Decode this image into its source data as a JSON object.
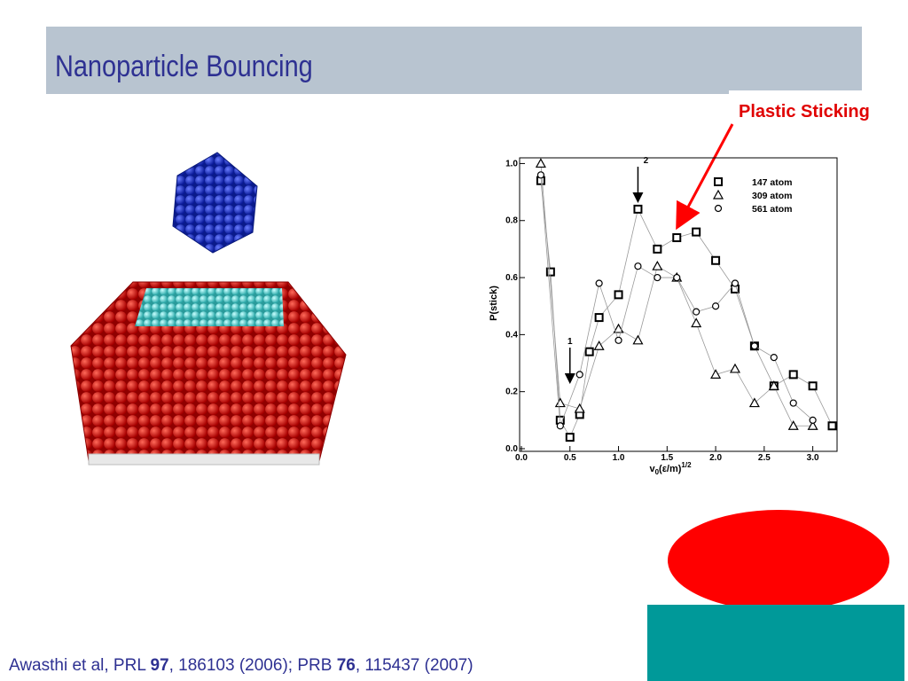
{
  "slide": {
    "title": "Nanoparticle Bouncing",
    "annotation": "Plastic Sticking",
    "citation": [
      "Awasthi et al, PRL ",
      "97",
      ", 186103 (2006); PRB ",
      "76",
      ", 115437 (2007)"
    ]
  },
  "chart_data": {
    "type": "scatter",
    "connected": true,
    "y_label": "P(stick)",
    "x_label": {
      "base": "v",
      "sub": "0",
      "main": "(ε/m)",
      "sup": "1/2"
    },
    "xlim": [
      0,
      3.25
    ],
    "ylim": [
      0,
      1.02
    ],
    "xticks": [
      {
        "value": 0,
        "label": "0.0"
      },
      {
        "value": 0.5,
        "label": "0.5"
      },
      {
        "value": 1,
        "label": "1.0"
      },
      {
        "value": 1.5,
        "label": "1.5"
      },
      {
        "value": 2,
        "label": "2.0"
      },
      {
        "value": 2.5,
        "label": "2.5"
      },
      {
        "value": 3,
        "label": "3.0"
      }
    ],
    "yticks": [
      {
        "value": 0,
        "label": "0.0"
      },
      {
        "value": 0.2,
        "label": "0.2"
      },
      {
        "value": 0.4,
        "label": "0.4"
      },
      {
        "value": 0.6,
        "label": "0.6"
      },
      {
        "value": 0.8,
        "label": "0.8"
      },
      {
        "value": 1,
        "label": "1.0"
      }
    ],
    "series": [
      {
        "name": "147 atom",
        "color": "#000000",
        "marker": "square",
        "x": [
          0.2,
          0.3,
          0.4,
          0.5,
          0.6,
          0.7,
          0.8,
          1.0,
          1.2,
          1.4,
          1.6,
          1.8,
          2.0,
          2.2,
          2.4,
          2.6,
          2.8,
          3.0,
          3.2
        ],
        "values": [
          0.94,
          0.62,
          0.1,
          0.04,
          0.12,
          0.34,
          0.46,
          0.54,
          0.84,
          0.7,
          0.74,
          0.76,
          0.66,
          0.56,
          0.36,
          0.22,
          0.26,
          0.22,
          0.08
        ]
      },
      {
        "name": "309 atom",
        "color": "#000000",
        "marker": "triangle",
        "x": [
          0.2,
          0.4,
          0.6,
          0.8,
          1.0,
          1.2,
          1.4,
          1.6,
          1.8,
          2.0,
          2.2,
          2.4,
          2.6,
          2.8,
          3.0
        ],
        "values": [
          1.0,
          0.16,
          0.14,
          0.36,
          0.42,
          0.38,
          0.64,
          0.6,
          0.44,
          0.26,
          0.28,
          0.16,
          0.22,
          0.08,
          0.08
        ]
      },
      {
        "name": "561 atom",
        "color": "#000000",
        "marker": "circle",
        "x": [
          0.2,
          0.4,
          0.6,
          0.8,
          1.0,
          1.2,
          1.4,
          1.6,
          1.8,
          2.0,
          2.2,
          2.4,
          2.6,
          2.8,
          3.0
        ],
        "values": [
          0.96,
          0.08,
          0.26,
          0.58,
          0.38,
          0.64,
          0.6,
          0.6,
          0.48,
          0.5,
          0.58,
          0.36,
          0.32,
          0.16,
          0.1
        ]
      }
    ],
    "annotations": [
      {
        "text": "1",
        "x": 0.5
      },
      {
        "text": "2",
        "x": 1.2
      }
    ]
  }
}
